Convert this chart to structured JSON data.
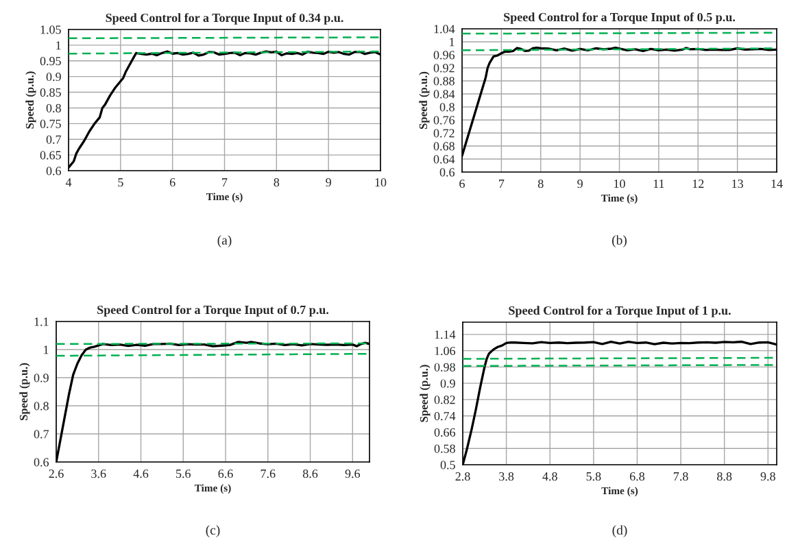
{
  "chart_data": [
    {
      "type": "line",
      "title": "Speed Control for a Torque Input of 0.34 p.u.",
      "xlabel": "Time (s)",
      "ylabel": "Speed (p.u.)",
      "annotations": [
        "(a)"
      ],
      "xlim": [
        4,
        10
      ],
      "xticks": [
        4,
        5,
        6,
        7,
        8,
        9,
        10
      ],
      "ylim": [
        0.6,
        1.05
      ],
      "yticks": [
        0.6,
        0.65,
        0.7,
        0.75,
        0.8,
        0.85,
        0.9,
        0.95,
        1,
        1.05
      ],
      "grid": true,
      "marker": "none",
      "series": [
        {
          "color": "#000000",
          "line_style": "solid",
          "x": [
            4,
            4.05,
            4.1,
            4.15,
            4.2,
            4.3,
            4.4,
            4.5,
            4.6,
            4.65,
            4.7,
            4.8,
            4.9,
            5.0,
            5.05,
            5.1,
            5.2,
            5.3,
            5.4,
            5.5,
            5.6,
            5.7,
            5.8,
            5.9,
            6.0,
            6.1,
            6.2,
            6.3,
            6.4,
            6.5,
            6.6,
            6.7,
            6.8,
            6.9,
            7.0,
            7.1,
            7.2,
            7.3,
            7.4,
            7.5,
            7.6,
            7.7,
            7.8,
            7.9,
            8.0,
            8.1,
            8.2,
            8.3,
            8.4,
            8.5,
            8.6,
            8.7,
            8.8,
            8.9,
            9.0,
            9.1,
            9.2,
            9.3,
            9.4,
            9.5,
            9.6,
            9.7,
            9.8,
            9.9,
            10.0
          ],
          "values": [
            0.61,
            0.62,
            0.63,
            0.655,
            0.67,
            0.695,
            0.725,
            0.75,
            0.77,
            0.8,
            0.81,
            0.84,
            0.865,
            0.885,
            0.895,
            0.915,
            0.945,
            0.975,
            0.972,
            0.97,
            0.973,
            0.968,
            0.975,
            0.98,
            0.973,
            0.975,
            0.97,
            0.972,
            0.976,
            0.967,
            0.97,
            0.978,
            0.977,
            0.97,
            0.972,
            0.975,
            0.976,
            0.968,
            0.975,
            0.974,
            0.97,
            0.976,
            0.98,
            0.977,
            0.979,
            0.968,
            0.974,
            0.972,
            0.975,
            0.97,
            0.979,
            0.976,
            0.975,
            0.972,
            0.979,
            0.976,
            0.978,
            0.972,
            0.97,
            0.978,
            0.979,
            0.972,
            0.976,
            0.978,
            0.97
          ]
        },
        {
          "color": "#00b050",
          "line_style": "dashed",
          "x": [
            4,
            10
          ],
          "values": [
            1.022,
            1.025
          ]
        },
        {
          "color": "#00b050",
          "line_style": "dashed",
          "x": [
            4,
            10
          ],
          "values": [
            0.973,
            0.98
          ]
        }
      ]
    },
    {
      "type": "line",
      "title": "Speed Control for a Torque Input of 0.5 p.u.",
      "xlabel": "Time (s)",
      "ylabel": "Speed (p.u.)",
      "annotations": [
        "(b)"
      ],
      "xlim": [
        6,
        14
      ],
      "xticks": [
        6,
        7,
        8,
        9,
        10,
        11,
        12,
        13,
        14
      ],
      "ylim": [
        0.6,
        1.04
      ],
      "yticks": [
        0.6,
        0.64,
        0.68,
        0.72,
        0.76,
        0.8,
        0.84,
        0.88,
        0.92,
        0.96,
        1,
        1.04
      ],
      "grid": true,
      "marker": "none",
      "series": [
        {
          "color": "#000000",
          "line_style": "solid",
          "x": [
            6,
            6.1,
            6.2,
            6.3,
            6.4,
            6.5,
            6.6,
            6.65,
            6.7,
            6.8,
            6.9,
            7.0,
            7.1,
            7.2,
            7.3,
            7.4,
            7.5,
            7.6,
            7.7,
            7.8,
            7.9,
            8.0,
            8.2,
            8.4,
            8.6,
            8.8,
            9.0,
            9.2,
            9.4,
            9.6,
            9.8,
            9.9,
            10.0,
            10.2,
            10.4,
            10.6,
            10.8,
            11.0,
            11.2,
            11.4,
            11.6,
            11.7,
            11.8,
            12.0,
            12.2,
            12.4,
            12.6,
            12.8,
            13.0,
            13.2,
            13.4,
            13.6,
            13.8,
            14.0
          ],
          "values": [
            0.65,
            0.69,
            0.73,
            0.77,
            0.81,
            0.85,
            0.89,
            0.92,
            0.935,
            0.955,
            0.958,
            0.965,
            0.97,
            0.97,
            0.972,
            0.981,
            0.978,
            0.972,
            0.973,
            0.98,
            0.982,
            0.98,
            0.979,
            0.974,
            0.979,
            0.973,
            0.978,
            0.974,
            0.98,
            0.977,
            0.979,
            0.982,
            0.979,
            0.974,
            0.977,
            0.972,
            0.978,
            0.974,
            0.976,
            0.973,
            0.976,
            0.981,
            0.977,
            0.978,
            0.975,
            0.976,
            0.975,
            0.975,
            0.98,
            0.976,
            0.977,
            0.978,
            0.975,
            0.976
          ]
        },
        {
          "color": "#00b050",
          "line_style": "dashed",
          "x": [
            6,
            14
          ],
          "values": [
            1.025,
            1.028
          ]
        },
        {
          "color": "#00b050",
          "line_style": "dashed",
          "x": [
            6,
            14
          ],
          "values": [
            0.974,
            0.98
          ]
        }
      ]
    },
    {
      "type": "line",
      "title": "Speed Control for a Torque Input of 0.7 p.u.",
      "xlabel": "Time (s)",
      "ylabel": "Speed (p.u.)",
      "annotations": [
        "(c)"
      ],
      "xlim": [
        2.6,
        10
      ],
      "xticks": [
        2.6,
        3.6,
        4.6,
        5.6,
        6.6,
        7.6,
        8.6,
        9.6
      ],
      "ylim": [
        0.6,
        1.1
      ],
      "yticks": [
        0.6,
        0.7,
        0.8,
        0.9,
        1,
        1.1
      ],
      "grid": true,
      "marker": "none",
      "series": [
        {
          "color": "#000000",
          "line_style": "solid",
          "x": [
            2.6,
            2.7,
            2.8,
            2.9,
            3.0,
            3.1,
            3.2,
            3.3,
            3.4,
            3.5,
            3.6,
            3.7,
            3.9,
            4.1,
            4.3,
            4.5,
            4.7,
            4.9,
            5.1,
            5.3,
            5.5,
            5.7,
            5.9,
            6.1,
            6.3,
            6.5,
            6.7,
            6.9,
            7.1,
            7.2,
            7.4,
            7.6,
            7.8,
            8.0,
            8.2,
            8.4,
            8.6,
            8.8,
            9.0,
            9.2,
            9.4,
            9.6,
            9.7,
            9.8,
            9.9,
            10.0
          ],
          "values": [
            0.6,
            0.68,
            0.76,
            0.84,
            0.91,
            0.95,
            0.98,
            1.0,
            1.007,
            1.01,
            1.015,
            1.02,
            1.016,
            1.018,
            1.013,
            1.017,
            1.014,
            1.02,
            1.02,
            1.021,
            1.016,
            1.019,
            1.018,
            1.018,
            1.012,
            1.014,
            1.016,
            1.027,
            1.024,
            1.027,
            1.022,
            1.019,
            1.021,
            1.016,
            1.019,
            1.015,
            1.02,
            1.018,
            1.017,
            1.018,
            1.016,
            1.018,
            1.012,
            1.02,
            1.024,
            1.02
          ]
        },
        {
          "color": "#00b050",
          "line_style": "dashed",
          "x": [
            2.6,
            10
          ],
          "values": [
            1.02,
            1.022
          ]
        },
        {
          "color": "#00b050",
          "line_style": "dashed",
          "x": [
            2.6,
            10
          ],
          "values": [
            0.978,
            0.985
          ]
        }
      ]
    },
    {
      "type": "line",
      "title": "Speed Control for a Torque Input of 1 p.u.",
      "xlabel": "Time (s)",
      "ylabel": "Speed (p.u.)",
      "annotations": [
        "(d)"
      ],
      "xlim": [
        2.8,
        10
      ],
      "xticks": [
        2.8,
        3.8,
        4.8,
        5.8,
        6.8,
        7.8,
        8.8,
        9.8
      ],
      "ylim": [
        0.5,
        1.2
      ],
      "yticks": [
        0.5,
        0.58,
        0.66,
        0.74,
        0.82,
        0.9,
        0.98,
        1.06,
        1.14
      ],
      "grid": true,
      "marker": "none",
      "series": [
        {
          "color": "#000000",
          "line_style": "solid",
          "x": [
            2.8,
            2.9,
            3.0,
            3.1,
            3.2,
            3.3,
            3.35,
            3.4,
            3.5,
            3.6,
            3.7,
            3.8,
            3.9,
            4.0,
            4.2,
            4.4,
            4.6,
            4.8,
            5.0,
            5.2,
            5.4,
            5.6,
            5.8,
            6.0,
            6.2,
            6.4,
            6.6,
            6.8,
            7.0,
            7.2,
            7.4,
            7.6,
            7.8,
            8.0,
            8.2,
            8.4,
            8.6,
            8.8,
            9.0,
            9.2,
            9.4,
            9.6,
            9.8,
            10.0
          ],
          "values": [
            0.5,
            0.58,
            0.67,
            0.77,
            0.88,
            0.98,
            1.02,
            1.045,
            1.065,
            1.078,
            1.085,
            1.098,
            1.1,
            1.1,
            1.098,
            1.096,
            1.102,
            1.098,
            1.1,
            1.097,
            1.099,
            1.1,
            1.102,
            1.093,
            1.104,
            1.095,
            1.104,
            1.098,
            1.1,
            1.092,
            1.099,
            1.095,
            1.098,
            1.097,
            1.1,
            1.101,
            1.099,
            1.103,
            1.101,
            1.104,
            1.093,
            1.1,
            1.101,
            1.09
          ]
        },
        {
          "color": "#00b050",
          "line_style": "dashed",
          "x": [
            2.8,
            10
          ],
          "values": [
            1.02,
            1.025
          ]
        },
        {
          "color": "#00b050",
          "line_style": "dashed",
          "x": [
            2.8,
            10
          ],
          "values": [
            0.985,
            0.99
          ]
        }
      ]
    }
  ]
}
